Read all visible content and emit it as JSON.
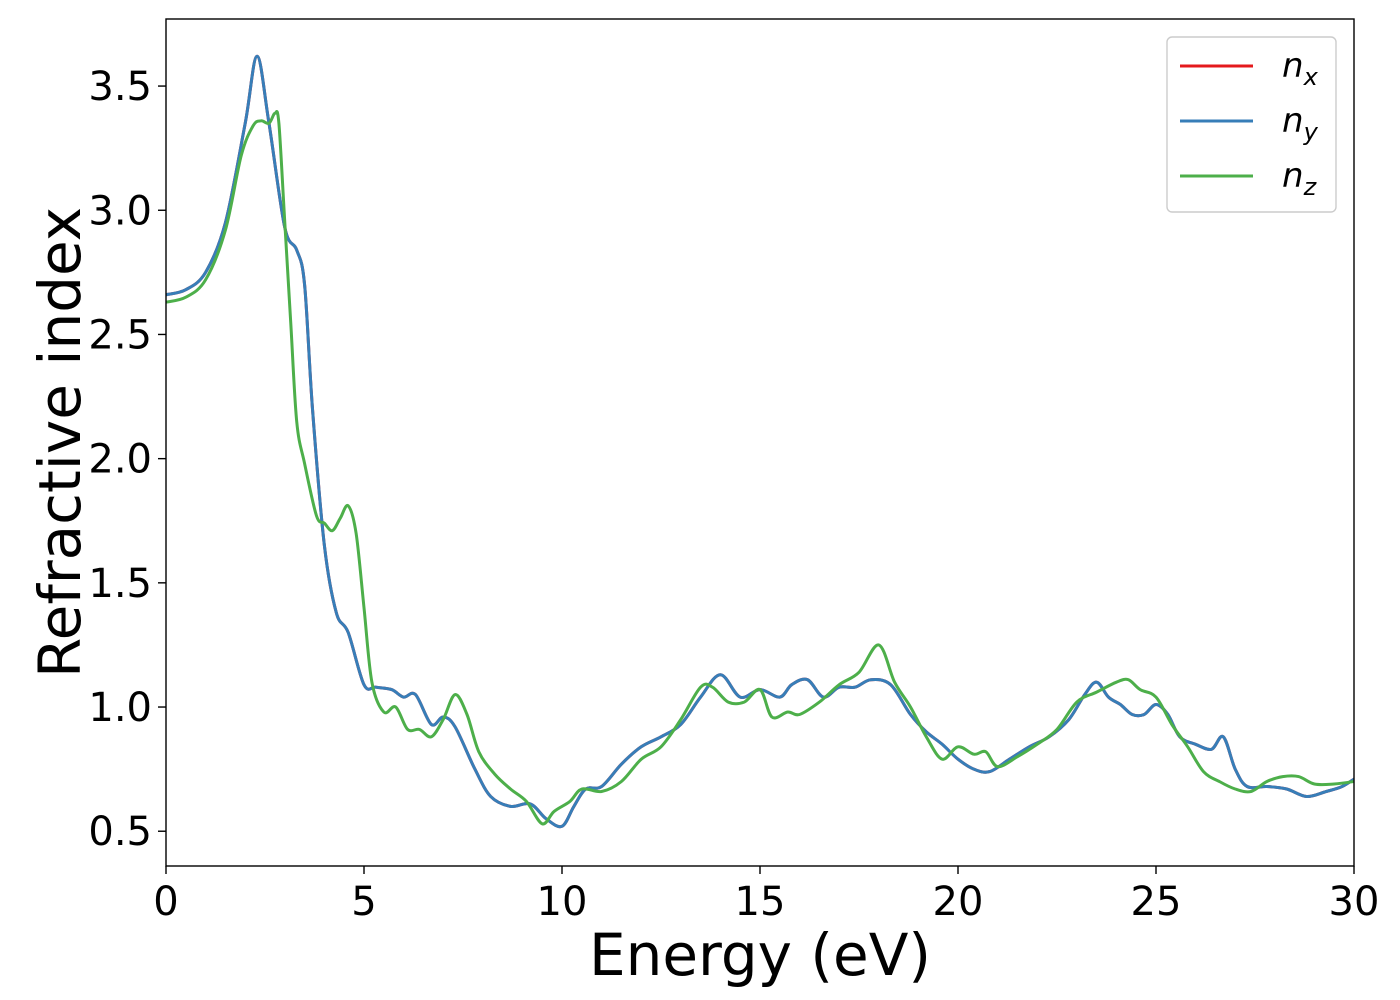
{
  "chart_data": {
    "type": "line",
    "title": "",
    "xlabel": "Energy (eV)",
    "ylabel": "Refractive index",
    "xlim": [
      0,
      30
    ],
    "ylim": [
      0.36,
      3.77
    ],
    "xticks": [
      0,
      5,
      10,
      15,
      20,
      25,
      30
    ],
    "xtick_labels": [
      "0",
      "5",
      "10",
      "15",
      "20",
      "25",
      "30"
    ],
    "yticks": [
      0.5,
      1.0,
      1.5,
      2.0,
      2.5,
      3.0,
      3.5
    ],
    "ytick_labels": [
      "0.5",
      "1.0",
      "1.5",
      "2.0",
      "2.5",
      "3.0",
      "3.5"
    ],
    "grid": false,
    "legend_position": "top-right",
    "series": [
      {
        "name": "n_x",
        "legend": {
          "base": "n",
          "sub": "x"
        },
        "color": "#e41a1c",
        "points": [
          [
            0,
            2.66
          ],
          [
            0.5,
            2.68
          ],
          [
            1.0,
            2.75
          ],
          [
            1.5,
            2.95
          ],
          [
            2.0,
            3.35
          ],
          [
            2.3,
            3.62
          ],
          [
            2.6,
            3.35
          ],
          [
            3.0,
            2.93
          ],
          [
            3.3,
            2.84
          ],
          [
            3.5,
            2.7
          ],
          [
            3.7,
            2.2
          ],
          [
            4.0,
            1.65
          ],
          [
            4.3,
            1.38
          ],
          [
            4.6,
            1.3
          ],
          [
            5.0,
            1.09
          ],
          [
            5.3,
            1.08
          ],
          [
            5.7,
            1.07
          ],
          [
            6.0,
            1.04
          ],
          [
            6.3,
            1.05
          ],
          [
            6.7,
            0.93
          ],
          [
            7.0,
            0.96
          ],
          [
            7.3,
            0.92
          ],
          [
            7.8,
            0.75
          ],
          [
            8.2,
            0.64
          ],
          [
            8.7,
            0.6
          ],
          [
            9.2,
            0.61
          ],
          [
            9.6,
            0.55
          ],
          [
            10.0,
            0.52
          ],
          [
            10.3,
            0.6
          ],
          [
            10.6,
            0.67
          ],
          [
            11.0,
            0.68
          ],
          [
            11.5,
            0.77
          ],
          [
            12.0,
            0.84
          ],
          [
            12.5,
            0.88
          ],
          [
            13.0,
            0.93
          ],
          [
            13.5,
            1.04
          ],
          [
            14.0,
            1.13
          ],
          [
            14.5,
            1.04
          ],
          [
            15.0,
            1.07
          ],
          [
            15.5,
            1.04
          ],
          [
            15.8,
            1.09
          ],
          [
            16.2,
            1.11
          ],
          [
            16.6,
            1.04
          ],
          [
            17.0,
            1.08
          ],
          [
            17.4,
            1.08
          ],
          [
            17.8,
            1.11
          ],
          [
            18.3,
            1.09
          ],
          [
            18.8,
            0.97
          ],
          [
            19.2,
            0.9
          ],
          [
            19.6,
            0.85
          ],
          [
            20.0,
            0.79
          ],
          [
            20.4,
            0.75
          ],
          [
            20.8,
            0.74
          ],
          [
            21.3,
            0.79
          ],
          [
            21.8,
            0.84
          ],
          [
            22.3,
            0.88
          ],
          [
            22.8,
            0.95
          ],
          [
            23.2,
            1.05
          ],
          [
            23.5,
            1.1
          ],
          [
            23.8,
            1.04
          ],
          [
            24.1,
            1.01
          ],
          [
            24.4,
            0.97
          ],
          [
            24.7,
            0.97
          ],
          [
            25.0,
            1.01
          ],
          [
            25.3,
            0.97
          ],
          [
            25.6,
            0.88
          ],
          [
            26.0,
            0.85
          ],
          [
            26.4,
            0.83
          ],
          [
            26.7,
            0.88
          ],
          [
            27.0,
            0.75
          ],
          [
            27.3,
            0.68
          ],
          [
            27.8,
            0.68
          ],
          [
            28.3,
            0.67
          ],
          [
            28.8,
            0.64
          ],
          [
            29.3,
            0.66
          ],
          [
            29.7,
            0.68
          ],
          [
            30.0,
            0.71
          ]
        ]
      },
      {
        "name": "n_y",
        "legend": {
          "base": "n",
          "sub": "y"
        },
        "color": "#377eb8",
        "points": [
          [
            0,
            2.66
          ],
          [
            0.5,
            2.68
          ],
          [
            1.0,
            2.75
          ],
          [
            1.5,
            2.95
          ],
          [
            2.0,
            3.35
          ],
          [
            2.3,
            3.62
          ],
          [
            2.6,
            3.35
          ],
          [
            3.0,
            2.93
          ],
          [
            3.3,
            2.84
          ],
          [
            3.5,
            2.7
          ],
          [
            3.7,
            2.2
          ],
          [
            4.0,
            1.65
          ],
          [
            4.3,
            1.38
          ],
          [
            4.6,
            1.3
          ],
          [
            5.0,
            1.09
          ],
          [
            5.3,
            1.08
          ],
          [
            5.7,
            1.07
          ],
          [
            6.0,
            1.04
          ],
          [
            6.3,
            1.05
          ],
          [
            6.7,
            0.93
          ],
          [
            7.0,
            0.96
          ],
          [
            7.3,
            0.92
          ],
          [
            7.8,
            0.75
          ],
          [
            8.2,
            0.64
          ],
          [
            8.7,
            0.6
          ],
          [
            9.2,
            0.61
          ],
          [
            9.6,
            0.55
          ],
          [
            10.0,
            0.52
          ],
          [
            10.3,
            0.6
          ],
          [
            10.6,
            0.67
          ],
          [
            11.0,
            0.68
          ],
          [
            11.5,
            0.77
          ],
          [
            12.0,
            0.84
          ],
          [
            12.5,
            0.88
          ],
          [
            13.0,
            0.93
          ],
          [
            13.5,
            1.04
          ],
          [
            14.0,
            1.13
          ],
          [
            14.5,
            1.04
          ],
          [
            15.0,
            1.07
          ],
          [
            15.5,
            1.04
          ],
          [
            15.8,
            1.09
          ],
          [
            16.2,
            1.11
          ],
          [
            16.6,
            1.04
          ],
          [
            17.0,
            1.08
          ],
          [
            17.4,
            1.08
          ],
          [
            17.8,
            1.11
          ],
          [
            18.3,
            1.09
          ],
          [
            18.8,
            0.97
          ],
          [
            19.2,
            0.9
          ],
          [
            19.6,
            0.85
          ],
          [
            20.0,
            0.79
          ],
          [
            20.4,
            0.75
          ],
          [
            20.8,
            0.74
          ],
          [
            21.3,
            0.79
          ],
          [
            21.8,
            0.84
          ],
          [
            22.3,
            0.88
          ],
          [
            22.8,
            0.95
          ],
          [
            23.2,
            1.05
          ],
          [
            23.5,
            1.1
          ],
          [
            23.8,
            1.04
          ],
          [
            24.1,
            1.01
          ],
          [
            24.4,
            0.97
          ],
          [
            24.7,
            0.97
          ],
          [
            25.0,
            1.01
          ],
          [
            25.3,
            0.97
          ],
          [
            25.6,
            0.88
          ],
          [
            26.0,
            0.85
          ],
          [
            26.4,
            0.83
          ],
          [
            26.7,
            0.88
          ],
          [
            27.0,
            0.75
          ],
          [
            27.3,
            0.68
          ],
          [
            27.8,
            0.68
          ],
          [
            28.3,
            0.67
          ],
          [
            28.8,
            0.64
          ],
          [
            29.3,
            0.66
          ],
          [
            29.7,
            0.68
          ],
          [
            30.0,
            0.71
          ]
        ]
      },
      {
        "name": "n_z",
        "legend": {
          "base": "n",
          "sub": "z"
        },
        "color": "#4daf4a",
        "points": [
          [
            0,
            2.63
          ],
          [
            0.5,
            2.65
          ],
          [
            1.0,
            2.72
          ],
          [
            1.5,
            2.92
          ],
          [
            1.9,
            3.22
          ],
          [
            2.2,
            3.34
          ],
          [
            2.4,
            3.36
          ],
          [
            2.6,
            3.35
          ],
          [
            2.75,
            3.39
          ],
          [
            2.85,
            3.35
          ],
          [
            3.0,
            2.95
          ],
          [
            3.15,
            2.55
          ],
          [
            3.3,
            2.15
          ],
          [
            3.5,
            1.98
          ],
          [
            3.8,
            1.77
          ],
          [
            4.0,
            1.74
          ],
          [
            4.2,
            1.71
          ],
          [
            4.4,
            1.76
          ],
          [
            4.6,
            1.81
          ],
          [
            4.8,
            1.7
          ],
          [
            5.0,
            1.4
          ],
          [
            5.2,
            1.1
          ],
          [
            5.5,
            0.98
          ],
          [
            5.8,
            1.0
          ],
          [
            6.1,
            0.91
          ],
          [
            6.4,
            0.91
          ],
          [
            6.7,
            0.88
          ],
          [
            7.0,
            0.95
          ],
          [
            7.3,
            1.05
          ],
          [
            7.6,
            0.97
          ],
          [
            7.9,
            0.82
          ],
          [
            8.3,
            0.73
          ],
          [
            8.7,
            0.67
          ],
          [
            9.1,
            0.62
          ],
          [
            9.5,
            0.53
          ],
          [
            9.8,
            0.58
          ],
          [
            10.2,
            0.62
          ],
          [
            10.5,
            0.67
          ],
          [
            11.0,
            0.66
          ],
          [
            11.5,
            0.7
          ],
          [
            12.0,
            0.79
          ],
          [
            12.5,
            0.84
          ],
          [
            13.0,
            0.95
          ],
          [
            13.5,
            1.08
          ],
          [
            13.8,
            1.08
          ],
          [
            14.2,
            1.02
          ],
          [
            14.6,
            1.02
          ],
          [
            15.0,
            1.07
          ],
          [
            15.3,
            0.96
          ],
          [
            15.7,
            0.98
          ],
          [
            16.0,
            0.97
          ],
          [
            16.5,
            1.02
          ],
          [
            17.0,
            1.09
          ],
          [
            17.5,
            1.14
          ],
          [
            18.0,
            1.25
          ],
          [
            18.4,
            1.1
          ],
          [
            18.8,
            1.0
          ],
          [
            19.2,
            0.88
          ],
          [
            19.6,
            0.79
          ],
          [
            20.0,
            0.84
          ],
          [
            20.4,
            0.81
          ],
          [
            20.7,
            0.82
          ],
          [
            21.0,
            0.76
          ],
          [
            21.5,
            0.8
          ],
          [
            22.0,
            0.85
          ],
          [
            22.5,
            0.91
          ],
          [
            23.0,
            1.02
          ],
          [
            23.5,
            1.06
          ],
          [
            24.0,
            1.1
          ],
          [
            24.3,
            1.11
          ],
          [
            24.6,
            1.07
          ],
          [
            25.0,
            1.04
          ],
          [
            25.4,
            0.93
          ],
          [
            25.8,
            0.84
          ],
          [
            26.2,
            0.74
          ],
          [
            26.6,
            0.7
          ],
          [
            27.0,
            0.67
          ],
          [
            27.4,
            0.66
          ],
          [
            27.8,
            0.7
          ],
          [
            28.2,
            0.72
          ],
          [
            28.6,
            0.72
          ],
          [
            29.0,
            0.69
          ],
          [
            29.5,
            0.69
          ],
          [
            30.0,
            0.7
          ]
        ]
      }
    ]
  }
}
